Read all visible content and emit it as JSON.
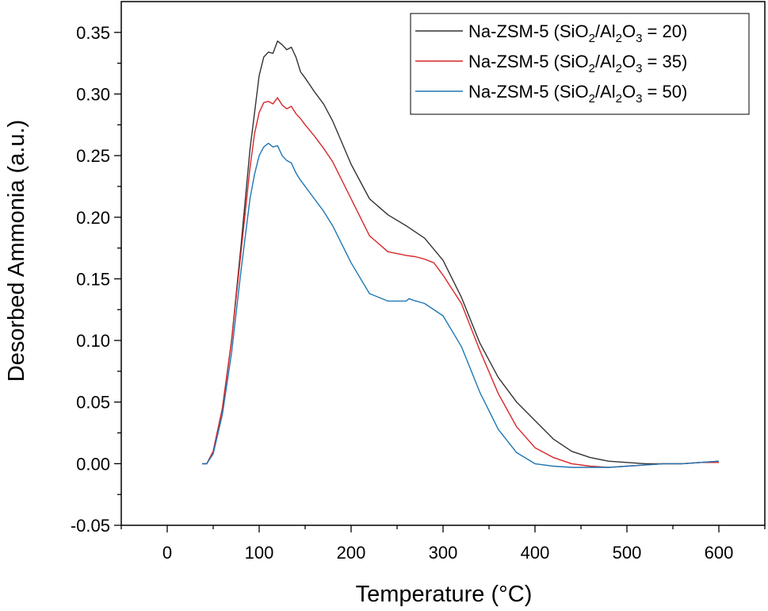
{
  "chart_data": {
    "type": "line",
    "xlabel": "Temperature (°C)",
    "ylabel": "Desorbed Ammonia (a.u.)",
    "xlim": [
      -50,
      650
    ],
    "ylim": [
      -0.05,
      0.375
    ],
    "x_ticks": [
      0,
      100,
      200,
      300,
      400,
      500,
      600
    ],
    "y_ticks": [
      -0.05,
      0.0,
      0.05,
      0.1,
      0.15,
      0.2,
      0.25,
      0.3,
      0.35
    ],
    "x_tick_labels": [
      "0",
      "100",
      "200",
      "300",
      "400",
      "500",
      "600"
    ],
    "y_tick_labels": [
      "-0.05",
      "0.00",
      "0.05",
      "0.10",
      "0.15",
      "0.20",
      "0.25",
      "0.30",
      "0.35"
    ],
    "grid": false,
    "legend_position": "top-right",
    "series": [
      {
        "name": "Na-ZSM-5 (SiO2/Al2O3 = 20)",
        "legend": {
          "prefix": "Na-ZSM-5 (SiO",
          "a": "2",
          "mid1": "/Al",
          "b": "2",
          "mid2": "O",
          "c": "3",
          "suffix": " = 20)"
        },
        "color": "#333333",
        "x": [
          38,
          43,
          50,
          60,
          70,
          80,
          90,
          95,
          100,
          105,
          110,
          115,
          120,
          125,
          130,
          135,
          140,
          145,
          150,
          160,
          170,
          180,
          200,
          220,
          240,
          260,
          280,
          300,
          320,
          340,
          360,
          380,
          400,
          420,
          440,
          460,
          480,
          500,
          520,
          540,
          560,
          580,
          600
        ],
        "y": [
          0.0,
          0.0,
          0.01,
          0.045,
          0.1,
          0.175,
          0.255,
          0.285,
          0.315,
          0.33,
          0.334,
          0.333,
          0.343,
          0.34,
          0.336,
          0.338,
          0.33,
          0.318,
          0.313,
          0.302,
          0.292,
          0.278,
          0.243,
          0.215,
          0.202,
          0.193,
          0.183,
          0.165,
          0.135,
          0.098,
          0.07,
          0.05,
          0.035,
          0.02,
          0.01,
          0.005,
          0.002,
          0.001,
          0.0,
          0.0,
          0.0,
          0.001,
          0.002
        ]
      },
      {
        "name": "Na-ZSM-5 (SiO2/Al2O3 = 35)",
        "legend": {
          "prefix": "Na-ZSM-5 (SiO",
          "a": "2",
          "mid1": "/Al",
          "b": "2",
          "mid2": "O",
          "c": "3",
          "suffix": " = 35)"
        },
        "color": "#d62728",
        "x": [
          38,
          43,
          50,
          60,
          70,
          80,
          90,
          95,
          100,
          105,
          110,
          115,
          120,
          125,
          130,
          135,
          140,
          145,
          150,
          160,
          170,
          180,
          200,
          220,
          240,
          260,
          270,
          280,
          290,
          300,
          320,
          340,
          360,
          380,
          400,
          420,
          440,
          460,
          480,
          500,
          520,
          540,
          560,
          580,
          600
        ],
        "y": [
          0.0,
          0.0,
          0.01,
          0.045,
          0.1,
          0.17,
          0.24,
          0.268,
          0.285,
          0.293,
          0.294,
          0.292,
          0.297,
          0.291,
          0.288,
          0.29,
          0.284,
          0.28,
          0.275,
          0.266,
          0.256,
          0.245,
          0.215,
          0.185,
          0.172,
          0.169,
          0.168,
          0.166,
          0.163,
          0.153,
          0.13,
          0.092,
          0.057,
          0.03,
          0.013,
          0.005,
          0.0,
          -0.002,
          -0.003,
          -0.002,
          -0.001,
          0.0,
          0.0,
          0.001,
          0.001
        ]
      },
      {
        "name": "Na-ZSM-5 (SiO2/Al2O3 = 50)",
        "legend": {
          "prefix": "Na-ZSM-5 (SiO",
          "a": "2",
          "mid1": "/Al",
          "b": "2",
          "mid2": "O",
          "c": "3",
          "suffix": " = 50)"
        },
        "color": "#1f77b4",
        "x": [
          38,
          43,
          50,
          60,
          70,
          80,
          90,
          95,
          100,
          105,
          110,
          115,
          120,
          125,
          130,
          135,
          140,
          145,
          150,
          160,
          170,
          180,
          200,
          220,
          240,
          260,
          263,
          266,
          280,
          300,
          320,
          340,
          360,
          380,
          400,
          420,
          440,
          460,
          480,
          500,
          520,
          540,
          560,
          580,
          600
        ],
        "y": [
          0.0,
          0.0,
          0.008,
          0.04,
          0.09,
          0.155,
          0.215,
          0.235,
          0.25,
          0.257,
          0.26,
          0.257,
          0.258,
          0.25,
          0.246,
          0.244,
          0.236,
          0.23,
          0.225,
          0.215,
          0.205,
          0.193,
          0.163,
          0.138,
          0.132,
          0.132,
          0.134,
          0.133,
          0.13,
          0.12,
          0.095,
          0.058,
          0.028,
          0.009,
          0.0,
          -0.002,
          -0.003,
          -0.003,
          -0.003,
          -0.002,
          -0.001,
          0.0,
          0.0,
          0.001,
          0.002
        ]
      }
    ]
  }
}
